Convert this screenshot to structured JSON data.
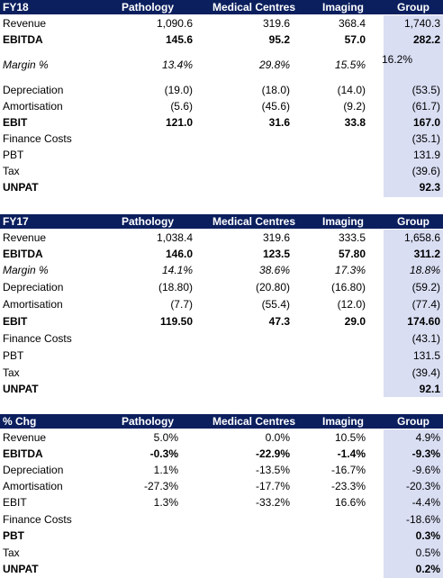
{
  "fy18": {
    "header": [
      "FY18",
      "Pathology",
      "Medical Centres",
      "Imaging",
      "Group"
    ],
    "rows": [
      {
        "label": "Revenue",
        "v": [
          "1,090.6",
          "319.6",
          "368.4",
          "1,740.3"
        ]
      },
      {
        "label": "EBITDA",
        "v": [
          "145.6",
          "95.2",
          "57.0",
          "282.2"
        ]
      },
      {
        "label": "Margin %",
        "v": [
          "13.4%",
          "29.8%",
          "15.5%",
          "16.2%"
        ]
      },
      {
        "label": "Depreciation",
        "v": [
          "(19.0)",
          "(18.0)",
          "(14.0)",
          "(53.5)"
        ]
      },
      {
        "label": "Amortisation",
        "v": [
          "(5.6)",
          "(45.6)",
          "(9.2)",
          "(61.7)"
        ]
      },
      {
        "label": "EBIT",
        "v": [
          "121.0",
          "31.6",
          "33.8",
          "167.0"
        ]
      },
      {
        "label": "Finance Costs",
        "v": [
          "",
          "",
          "",
          "(35.1)"
        ]
      },
      {
        "label": "PBT",
        "v": [
          "",
          "",
          "",
          "131.9"
        ]
      },
      {
        "label": "Tax",
        "v": [
          "",
          "",
          "",
          "(39.6)"
        ]
      },
      {
        "label": "UNPAT",
        "v": [
          "",
          "",
          "",
          "92.3"
        ]
      }
    ]
  },
  "fy17": {
    "header": [
      "FY17",
      "Pathology",
      "Medical Centres",
      "Imaging",
      "Group"
    ],
    "rows": [
      {
        "label": "Revenue",
        "v": [
          "1,038.4",
          "319.6",
          "333.5",
          "1,658.6"
        ]
      },
      {
        "label": "EBITDA",
        "v": [
          "146.0",
          "123.5",
          "57.80",
          "311.2"
        ]
      },
      {
        "label": "Margin %",
        "v": [
          "14.1%",
          "38.6%",
          "17.3%",
          "18.8%"
        ]
      },
      {
        "label": "Depreciation",
        "v": [
          "(18.80)",
          "(20.80)",
          "(16.80)",
          "(59.2)"
        ]
      },
      {
        "label": "Amortisation",
        "v": [
          "(7.7)",
          "(55.4)",
          "(12.0)",
          "(77.4)"
        ]
      },
      {
        "label": "EBIT",
        "v": [
          "119.50",
          "47.3",
          "29.0",
          "174.60"
        ]
      },
      {
        "label": "Finance Costs",
        "v": [
          "",
          "",
          "",
          "(43.1)"
        ]
      },
      {
        "label": "PBT",
        "v": [
          "",
          "",
          "",
          "131.5"
        ]
      },
      {
        "label": "Tax",
        "v": [
          "",
          "",
          "",
          "(39.4)"
        ]
      },
      {
        "label": "UNPAT",
        "v": [
          "",
          "",
          "",
          "92.1"
        ]
      }
    ]
  },
  "chg": {
    "header": [
      "% Chg",
      "Pathology",
      "Medical Centres",
      "Imaging",
      "Group"
    ],
    "rows": [
      {
        "label": "Revenue",
        "v": [
          "5.0%",
          "0.0%",
          "10.5%",
          "4.9%"
        ]
      },
      {
        "label": "EBITDA",
        "v": [
          "-0.3%",
          "-22.9%",
          "-1.4%",
          "-9.3%"
        ]
      },
      {
        "label": "Depreciation",
        "v": [
          "1.1%",
          "-13.5%",
          "-16.7%",
          "-9.6%"
        ]
      },
      {
        "label": "Amortisation",
        "v": [
          "-27.3%",
          "-17.7%",
          "-23.3%",
          "-20.3%"
        ]
      },
      {
        "label": "EBIT",
        "v": [
          "1.3%",
          "-33.2%",
          "16.6%",
          "-4.4%"
        ]
      },
      {
        "label": "Finance Costs",
        "v": [
          "",
          "",
          "",
          "-18.6%"
        ]
      },
      {
        "label": "PBT",
        "v": [
          "",
          "",
          "",
          "0.3%"
        ]
      },
      {
        "label": "Tax",
        "v": [
          "",
          "",
          "",
          "0.5%"
        ]
      },
      {
        "label": "UNPAT",
        "v": [
          "",
          "",
          "",
          "0.2%"
        ]
      }
    ]
  },
  "colors": {
    "header_bg": "#0b1f5e",
    "group_bg": "#d9def3"
  }
}
